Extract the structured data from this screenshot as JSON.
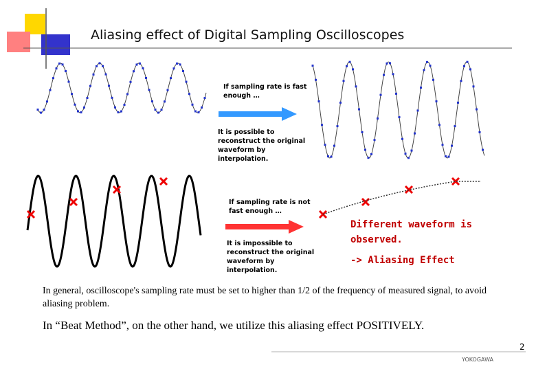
{
  "title": "Aliasing effect of Digital Sampling Oscilloscopes",
  "fast": {
    "condition": "If sampling rate is fast enough …",
    "result": "It is possible to reconstruct the original waveform by interpolation."
  },
  "slow": {
    "condition": "If sampling rate is not fast enough …",
    "result": "It is impossible to reconstruct the original waveform by interpolation.",
    "observed": "Different waveform is observed.",
    "effect": "-> Aliasing Effect"
  },
  "paragraphs": [
    "In general, oscilloscope's sampling rate must be set to higher than 1/2 of the frequency of measured signal, to avoid aliasing problem.",
    "In “Beat Method”, on the other hand, we utilize this aliasing effect POSITIVELY."
  ],
  "page_number": "2",
  "footer": "YOKOGAWA"
}
